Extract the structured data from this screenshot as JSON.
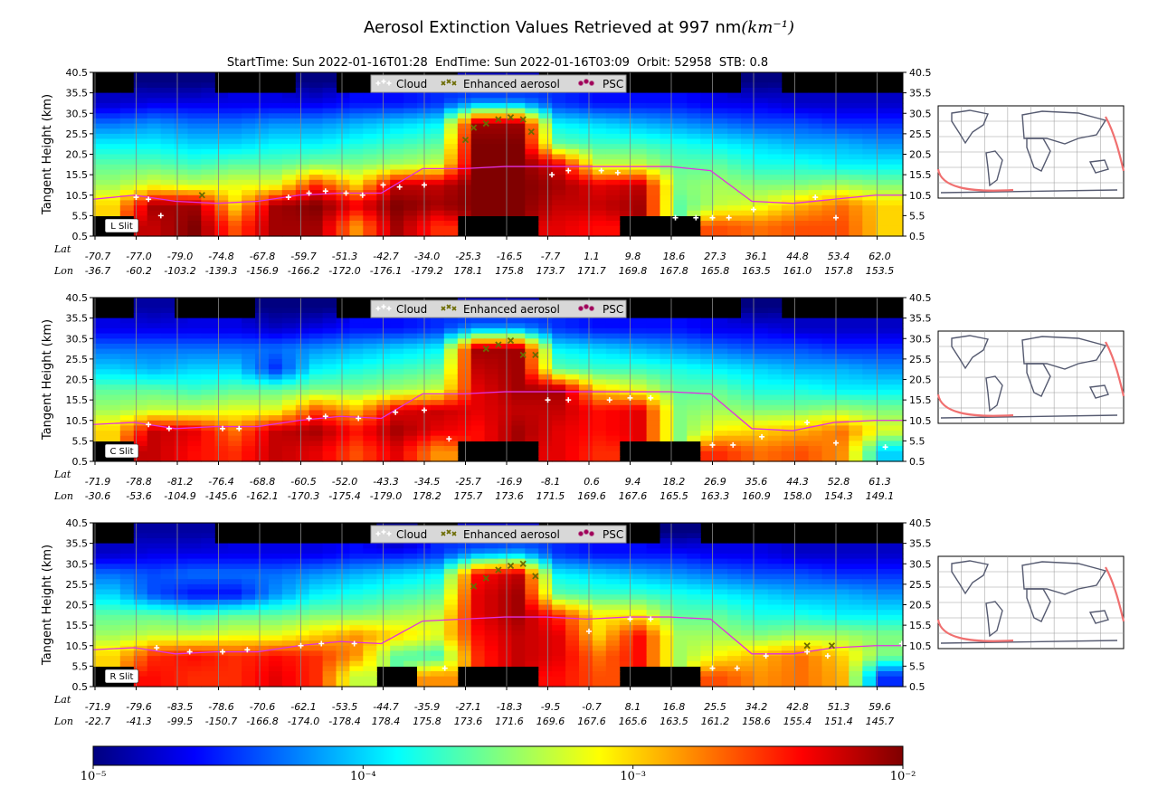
{
  "chart_data": {
    "type": "heatmap",
    "title": "Aerosol Extinction Values Retrieved at 997 nm",
    "title_unit": "(km⁻¹)",
    "subtitle": "StartTime: Sun 2022-01-16T01:28  EndTime: Sun 2022-01-16T03:09  Orbit: 52958  STB: 0.8",
    "ylabel": "Tangent Height (km)",
    "y_ticks": [
      "0.5",
      "5.5",
      "10.5",
      "15.5",
      "20.5",
      "25.5",
      "30.5",
      "35.5",
      "40.5"
    ],
    "ylim": [
      0.5,
      40.5
    ],
    "x_row_labels": {
      "lat": "Lat",
      "lon": "Lon"
    },
    "legend": [
      {
        "label": "Cloud",
        "color": "#ffffff",
        "marker": "+"
      },
      {
        "label": "Enhanced aerosol",
        "color": "#6b6b00",
        "marker": "x"
      },
      {
        "label": "PSC",
        "color": "#a0005a",
        "marker": "*"
      }
    ],
    "tropopause_color": "#e030e0",
    "colorbar": {
      "scale": "log",
      "min": 1e-05,
      "max": 0.01,
      "ticks": [
        "10⁻⁵",
        "10⁻⁴",
        "10⁻³",
        "10⁻²"
      ],
      "colormap": "jet"
    },
    "value_note": "grid values are log10 extinction (km^-1), rows top 35.5-40.5 km to bottom 0.5-5.5 km; null = no data (black)",
    "panels": [
      {
        "label": "L Slit",
        "lat": [
          "-70.7",
          "-77.0",
          "-79.0",
          "-74.8",
          "-67.8",
          "-59.7",
          "-51.3",
          "-42.7",
          "-34.0",
          "-25.3",
          "-16.5",
          "-7.7",
          "1.1",
          "9.8",
          "18.6",
          "27.3",
          "36.1",
          "44.8",
          "53.4",
          "62.0"
        ],
        "lon": [
          "-36.7",
          "-60.2",
          "-103.2",
          "-139.3",
          "-156.9",
          "-166.2",
          "-172.0",
          "-176.1",
          "-179.2",
          "178.1",
          "175.8",
          "173.7",
          "171.7",
          "169.8",
          "167.8",
          "165.8",
          "163.5",
          "161.0",
          "157.8",
          "153.5"
        ],
        "tropopause_km": [
          9.5,
          10.5,
          9.0,
          8.5,
          9.0,
          10.5,
          11.0,
          11.0,
          17.0,
          17.0,
          17.5,
          17.5,
          17.5,
          17.5,
          17.5,
          16.5,
          9.0,
          8.5,
          9.5,
          10.5,
          10.5
        ],
        "clouds": [
          [
            1.0,
            10
          ],
          [
            1.3,
            9.5
          ],
          [
            1.6,
            5.5
          ],
          [
            4.7,
            10
          ],
          [
            5.2,
            11
          ],
          [
            5.6,
            11.5
          ],
          [
            6.1,
            11
          ],
          [
            6.5,
            10.5
          ],
          [
            7.0,
            13
          ],
          [
            7.4,
            12.5
          ],
          [
            8.0,
            13
          ],
          [
            11.1,
            15.5
          ],
          [
            11.5,
            16.5
          ],
          [
            12.3,
            16.5
          ],
          [
            12.7,
            16
          ],
          [
            14.1,
            5
          ],
          [
            14.6,
            5
          ],
          [
            15.0,
            5
          ],
          [
            15.4,
            5
          ],
          [
            16.0,
            7
          ],
          [
            17.5,
            10
          ],
          [
            18.0,
            5
          ]
        ],
        "aerosol": [
          [
            2.6,
            10.5
          ],
          [
            9.0,
            24
          ],
          [
            9.2,
            27
          ],
          [
            9.5,
            28
          ],
          [
            9.8,
            29
          ],
          [
            10.1,
            29.5
          ],
          [
            10.4,
            29
          ],
          [
            10.6,
            26
          ]
        ],
        "grid": [
          [
            null,
            -5,
            -5,
            null,
            null,
            -5,
            null,
            null,
            null,
            -4.8,
            -4.8,
            null,
            null,
            null,
            null,
            null,
            -5,
            null,
            null,
            null
          ],
          [
            -4.8,
            -4.7,
            -4.7,
            -4.7,
            -4.7,
            -4.7,
            -4.6,
            -4.6,
            -4.5,
            -4.2,
            -4.2,
            -4.5,
            -4.6,
            -4.6,
            -4.6,
            -4.7,
            -4.7,
            -4.8,
            -4.8,
            -4.8
          ],
          [
            -4.3,
            -4.2,
            -4.3,
            -4.3,
            -4.2,
            -4.2,
            -4.1,
            -4.0,
            -3.9,
            -2.1,
            -2.1,
            -3.9,
            -4.0,
            -4.1,
            -4.2,
            -4.3,
            -4.4,
            -4.4,
            -4.5,
            -4.5
          ],
          [
            -3.9,
            -3.9,
            -4.0,
            -4.0,
            -3.9,
            -3.9,
            -3.8,
            -3.7,
            -3.6,
            -2.0,
            -2.0,
            -3.6,
            -3.7,
            -3.7,
            -3.8,
            -3.9,
            -4.0,
            -4.1,
            -4.1,
            -4.2
          ],
          [
            -3.6,
            -3.6,
            -3.7,
            -3.6,
            -3.6,
            -3.5,
            -3.5,
            -3.4,
            -3.3,
            -2.0,
            -2.0,
            -2.3,
            -3.3,
            -3.3,
            -3.6,
            -3.6,
            -3.8,
            -3.8,
            -3.9,
            -3.9
          ],
          [
            -3.4,
            -3.2,
            -3.3,
            -3.2,
            -3.2,
            -2.5,
            -3.0,
            -2.2,
            -2.2,
            -2.0,
            -2.0,
            -2.1,
            -2.3,
            -2.2,
            -3.5,
            -3.4,
            -3.5,
            -3.5,
            -3.4,
            -3.5
          ],
          [
            -3.0,
            -2.1,
            -2.1,
            -3.0,
            -2.1,
            -2.0,
            -2.3,
            -2.0,
            -2.1,
            -2.0,
            -2.0,
            -2.2,
            -2.2,
            -2.1,
            -3.6,
            -3.3,
            -3.2,
            -2.9,
            -2.7,
            -3.0
          ],
          [
            null,
            -2.2,
            -2.0,
            -2.6,
            -2.1,
            -2.1,
            -2.8,
            -2.1,
            -2.5,
            null,
            null,
            -2.3,
            -2.4,
            null,
            null,
            -2.6,
            -2.7,
            -2.6,
            -2.6,
            -3.0
          ]
        ]
      },
      {
        "label": "C Slit",
        "lat": [
          "-71.9",
          "-78.8",
          "-81.2",
          "-76.4",
          "-68.8",
          "-60.5",
          "-52.0",
          "-43.3",
          "-34.5",
          "-25.7",
          "-16.9",
          "-8.1",
          "0.6",
          "9.4",
          "18.2",
          "26.9",
          "35.6",
          "44.3",
          "52.8",
          "61.3"
        ],
        "lon": [
          "-30.6",
          "-53.6",
          "-104.9",
          "-145.6",
          "-162.1",
          "-170.3",
          "-175.4",
          "-179.0",
          "178.2",
          "175.7",
          "173.6",
          "171.5",
          "169.6",
          "167.6",
          "165.5",
          "163.3",
          "160.9",
          "158.0",
          "154.3",
          "149.1"
        ],
        "tropopause_km": [
          9.5,
          10.0,
          8.5,
          9.0,
          9.0,
          10.5,
          11.5,
          11.0,
          17.0,
          17.0,
          17.5,
          17.5,
          17.5,
          17.5,
          17.5,
          17.0,
          8.5,
          8.0,
          10.0,
          10.5,
          10.5
        ],
        "clouds": [
          [
            1.3,
            9.5
          ],
          [
            1.8,
            8.5
          ],
          [
            3.1,
            8.5
          ],
          [
            3.5,
            8.5
          ],
          [
            5.2,
            11
          ],
          [
            5.6,
            11.5
          ],
          [
            6.4,
            11
          ],
          [
            7.3,
            12.5
          ],
          [
            8.0,
            13
          ],
          [
            8.6,
            6
          ],
          [
            11.0,
            15.5
          ],
          [
            11.5,
            15.5
          ],
          [
            12.5,
            15.5
          ],
          [
            13.0,
            16
          ],
          [
            13.5,
            16
          ],
          [
            15.0,
            4.5
          ],
          [
            15.5,
            4.5
          ],
          [
            16.2,
            6.5
          ],
          [
            17.3,
            10
          ],
          [
            18.0,
            5
          ],
          [
            19.2,
            4
          ]
        ],
        "aerosol": [
          [
            9.5,
            28
          ],
          [
            9.8,
            29
          ],
          [
            10.1,
            30
          ],
          [
            10.4,
            26.5
          ],
          [
            10.7,
            26.5
          ]
        ],
        "grid": [
          [
            null,
            -4.9,
            null,
            null,
            -5,
            -5,
            null,
            null,
            null,
            -4.8,
            -4.8,
            null,
            null,
            null,
            null,
            null,
            -5,
            null,
            null,
            null
          ],
          [
            -4.7,
            -4.7,
            -4.7,
            -4.7,
            -4.8,
            -4.7,
            -4.6,
            -4.6,
            -4.5,
            -4.2,
            -4.2,
            -4.5,
            -4.6,
            -4.6,
            -4.6,
            -4.7,
            -4.7,
            -4.8,
            -4.8,
            -4.8
          ],
          [
            -4.3,
            -4.3,
            -4.3,
            -4.3,
            -4.3,
            -4.2,
            -4.1,
            -4.0,
            -3.9,
            -2.1,
            -2.1,
            -3.9,
            -4.0,
            -4.1,
            -4.2,
            -4.3,
            -4.4,
            -4.4,
            -4.5,
            -4.5
          ],
          [
            -4.0,
            -4.1,
            -4.0,
            -4.0,
            -4.5,
            -3.9,
            -3.8,
            -3.7,
            -3.6,
            -2.2,
            -2.1,
            -3.6,
            -3.7,
            -3.7,
            -3.8,
            -3.9,
            -4.0,
            -4.1,
            -4.1,
            -4.2
          ],
          [
            -3.6,
            -3.6,
            -3.7,
            -3.6,
            -3.6,
            -3.5,
            -3.5,
            -3.4,
            -3.3,
            -2.3,
            -2.1,
            -2.1,
            -3.0,
            -3.2,
            -3.6,
            -3.6,
            -3.8,
            -3.8,
            -3.9,
            -3.9
          ],
          [
            -3.4,
            -3.3,
            -3.3,
            -3.2,
            -3.2,
            -2.6,
            -2.9,
            -2.3,
            -2.2,
            -2.3,
            -2.2,
            -2.2,
            -2.4,
            -2.3,
            -3.5,
            -3.4,
            -3.5,
            -3.5,
            -3.4,
            -3.5
          ],
          [
            -3.0,
            -2.2,
            -2.3,
            -2.7,
            -2.2,
            -2.1,
            -2.4,
            -2.1,
            -2.3,
            -2.4,
            -2.1,
            -2.3,
            -2.4,
            -2.3,
            -3.5,
            -3.1,
            -3.0,
            -2.9,
            -2.7,
            -3.2
          ],
          [
            null,
            -2.2,
            -2.4,
            -2.5,
            -2.2,
            -2.3,
            -2.6,
            -2.3,
            -2.8,
            null,
            null,
            -2.3,
            -2.5,
            null,
            null,
            -2.5,
            -2.7,
            -2.6,
            -2.8,
            -4.0
          ]
        ]
      },
      {
        "label": "R Slit",
        "lat": [
          "-71.9",
          "-79.6",
          "-83.5",
          "-78.6",
          "-70.6",
          "-62.1",
          "-53.5",
          "-44.7",
          "-35.9",
          "-27.1",
          "-18.3",
          "-9.5",
          "-0.7",
          "8.1",
          "16.8",
          "25.5",
          "34.2",
          "42.8",
          "51.3",
          "59.6"
        ],
        "lon": [
          "-22.7",
          "-41.3",
          "-99.5",
          "-150.7",
          "-166.8",
          "-174.0",
          "-178.4",
          "178.4",
          "175.8",
          "173.6",
          "171.6",
          "169.6",
          "167.6",
          "165.6",
          "163.5",
          "161.2",
          "158.6",
          "155.4",
          "151.4",
          "145.7"
        ],
        "tropopause_km": [
          9.5,
          10.0,
          8.5,
          9.0,
          9.0,
          10.5,
          11.5,
          11.0,
          16.5,
          17.0,
          17.5,
          17.5,
          17.0,
          17.5,
          17.5,
          17.0,
          8.5,
          8.5,
          10.0,
          10.5,
          10.5
        ],
        "clouds": [
          [
            1.5,
            10
          ],
          [
            2.3,
            9
          ],
          [
            3.1,
            9
          ],
          [
            3.7,
            9.5
          ],
          [
            5.0,
            10.5
          ],
          [
            5.5,
            11
          ],
          [
            6.3,
            11
          ],
          [
            8.5,
            5
          ],
          [
            12.0,
            14
          ],
          [
            13.0,
            17
          ],
          [
            13.5,
            17
          ],
          [
            15.0,
            5
          ],
          [
            15.6,
            5
          ],
          [
            16.3,
            8
          ],
          [
            17.3,
            9
          ],
          [
            17.8,
            8
          ],
          [
            19.6,
            11
          ]
        ],
        "aerosol": [
          [
            9.2,
            25
          ],
          [
            9.5,
            27
          ],
          [
            9.8,
            29
          ],
          [
            10.1,
            30
          ],
          [
            10.4,
            30.5
          ],
          [
            10.7,
            27.5
          ],
          [
            17.3,
            10.5
          ],
          [
            17.9,
            10.5
          ]
        ],
        "grid": [
          [
            null,
            -4.9,
            -4.9,
            null,
            null,
            null,
            null,
            -5,
            null,
            -4.8,
            -4.8,
            null,
            null,
            null,
            -5,
            null,
            null,
            null,
            null,
            null
          ],
          [
            -4.8,
            -4.7,
            -4.7,
            -4.7,
            -4.7,
            -4.7,
            -4.6,
            -4.6,
            -4.5,
            -4.2,
            -4.1,
            -4.5,
            -4.6,
            -4.6,
            -4.6,
            -4.7,
            -4.7,
            -4.8,
            -4.8,
            -4.8
          ],
          [
            -4.3,
            -4.4,
            -4.3,
            -4.3,
            -4.3,
            -4.2,
            -4.1,
            -4.0,
            -3.9,
            -2.4,
            -2.2,
            -3.9,
            -4.0,
            -4.1,
            -4.2,
            -4.3,
            -4.4,
            -4.4,
            -4.5,
            -4.5
          ],
          [
            -4.0,
            -4.4,
            -4.6,
            -4.6,
            -4.2,
            -3.9,
            -3.8,
            -3.7,
            -3.6,
            -2.3,
            -2.1,
            -3.6,
            -3.7,
            -3.7,
            -3.8,
            -3.9,
            -4.0,
            -4.1,
            -4.1,
            -4.2
          ],
          [
            -3.6,
            -3.6,
            -3.7,
            -3.6,
            -3.6,
            -3.5,
            -3.5,
            -3.4,
            -3.3,
            -2.3,
            -2.1,
            -2.5,
            -3.1,
            -3.1,
            -3.6,
            -3.6,
            -3.8,
            -3.8,
            -3.9,
            -3.9
          ],
          [
            -3.4,
            -3.3,
            -3.3,
            -3.2,
            -3.2,
            -3.0,
            -2.8,
            -3.0,
            -3.2,
            -2.4,
            -2.2,
            -2.3,
            -3.0,
            -2.4,
            -3.4,
            -3.4,
            -3.5,
            -3.4,
            -3.4,
            -3.5
          ],
          [
            -3.0,
            -2.5,
            -2.4,
            -2.5,
            -2.4,
            -2.5,
            -2.8,
            -3.6,
            -3.7,
            -2.5,
            -2.2,
            -2.3,
            -2.7,
            -2.4,
            -3.4,
            -3.1,
            -2.9,
            -2.7,
            -3.0,
            -3.5
          ],
          [
            null,
            -2.4,
            -2.5,
            -2.5,
            -2.3,
            -2.5,
            -3.3,
            null,
            -2.8,
            null,
            null,
            -2.4,
            -2.6,
            null,
            null,
            -2.6,
            -2.8,
            -2.7,
            -2.9,
            -4.5
          ]
        ]
      }
    ]
  }
}
